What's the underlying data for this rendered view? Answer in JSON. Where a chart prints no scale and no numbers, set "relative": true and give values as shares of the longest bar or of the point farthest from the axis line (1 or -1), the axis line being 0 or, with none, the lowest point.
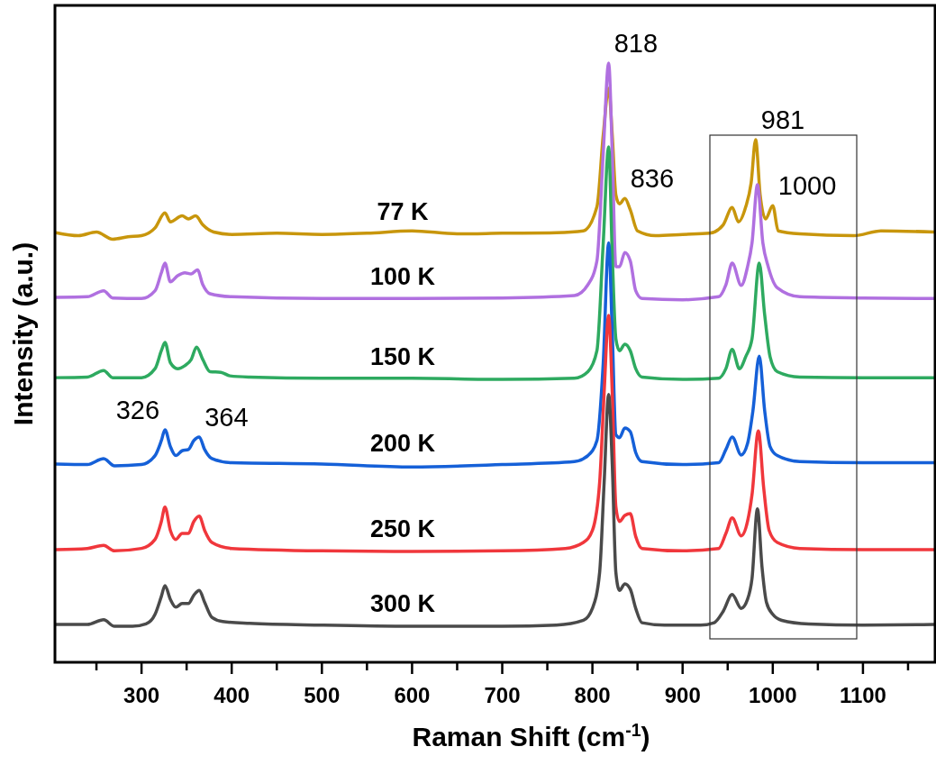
{
  "chart_data": {
    "type": "line",
    "relative": true,
    "xlabel": "Raman Shift (cm$^{-1}$)",
    "ylabel": "Intensity (a.u.)",
    "xlim": [
      204,
      1180
    ],
    "xticks": [
      {
        "value": 250,
        "label": null
      },
      300,
      {
        "value": 350,
        "label": null
      },
      400,
      {
        "value": 450,
        "label": null
      },
      500,
      {
        "value": 550,
        "label": null
      },
      600,
      {
        "value": 650,
        "label": null
      },
      700,
      {
        "value": 750,
        "label": null
      },
      800,
      {
        "value": 850,
        "label": null
      },
      900,
      {
        "value": 950,
        "label": null
      },
      1000,
      {
        "value": 1050,
        "label": null
      },
      1100,
      {
        "value": 1150,
        "label": null
      }
    ],
    "tick_labels": "x",
    "grid": false,
    "marker": "none",
    "line_style": "solid",
    "annotations": [
      {
        "text": "818",
        "x": 818,
        "y": 1.0
      },
      {
        "text": "836",
        "x": 836,
        "y": 0.774
      },
      {
        "text": "981",
        "x": 981,
        "y": 0.872
      },
      {
        "text": "1000",
        "x": 1000,
        "y": 0.762
      },
      {
        "text": "326",
        "x": 326,
        "y": 0.388
      },
      {
        "text": "364",
        "x": 364,
        "y": 0.376
      }
    ],
    "series": [
      {
        "name": "77 K",
        "color": "#c8960c",
        "x": [
          205,
          230,
          250,
          268,
          285,
          300,
          315,
          326,
          332,
          345,
          352,
          360,
          368,
          380,
          400,
          450,
          500,
          550,
          600,
          650,
          700,
          760,
          790,
          805,
          812,
          818,
          822,
          826,
          830,
          836,
          842,
          850,
          870,
          900,
          930,
          945,
          955,
          962,
          970,
          976,
          981,
          986,
          992,
          1000,
          1006,
          1030,
          1090,
          1120,
          1179
        ],
        "values": [
          0.717,
          0.712,
          0.718,
          0.706,
          0.71,
          0.712,
          0.725,
          0.75,
          0.735,
          0.745,
          0.74,
          0.745,
          0.73,
          0.718,
          0.714,
          0.716,
          0.714,
          0.716,
          0.72,
          0.715,
          0.716,
          0.717,
          0.72,
          0.76,
          0.88,
          0.958,
          0.88,
          0.78,
          0.765,
          0.774,
          0.755,
          0.72,
          0.712,
          0.714,
          0.716,
          0.73,
          0.759,
          0.735,
          0.76,
          0.8,
          0.872,
          0.78,
          0.74,
          0.762,
          0.72,
          0.715,
          0.712,
          0.72,
          0.718
        ]
      },
      {
        "name": "100 K",
        "color": "#b070e0",
        "x": [
          205,
          240,
          258,
          268,
          300,
          315,
          322,
          326,
          332,
          340,
          348,
          355,
          362,
          368,
          376,
          400,
          500,
          600,
          700,
          780,
          795,
          805,
          812,
          818,
          822,
          826,
          830,
          836,
          842,
          848,
          855,
          900,
          940,
          948,
          955,
          965,
          972,
          977,
          983,
          989,
          995,
          1005,
          1030,
          1100,
          1179
        ],
        "values": [
          0.609,
          0.61,
          0.62,
          0.608,
          0.607,
          0.62,
          0.65,
          0.666,
          0.635,
          0.645,
          0.65,
          0.648,
          0.655,
          0.63,
          0.615,
          0.61,
          0.607,
          0.607,
          0.608,
          0.612,
          0.63,
          0.67,
          0.85,
          1.0,
          0.85,
          0.66,
          0.66,
          0.684,
          0.67,
          0.62,
          0.607,
          0.605,
          0.61,
          0.63,
          0.666,
          0.629,
          0.66,
          0.7,
          0.797,
          0.7,
          0.66,
          0.625,
          0.61,
          0.608,
          0.607
        ]
      },
      {
        "name": "150 K",
        "color": "#2eaa60",
        "x": [
          205,
          240,
          258,
          268,
          300,
          315,
          322,
          326,
          332,
          340,
          348,
          355,
          361,
          368,
          376,
          388,
          398,
          420,
          500,
          600,
          700,
          780,
          795,
          805,
          812,
          818,
          822,
          826,
          830,
          836,
          842,
          848,
          855,
          900,
          940,
          948,
          955,
          963,
          970,
          977,
          985,
          991,
          997,
          1005,
          1030,
          1100,
          1179
        ],
        "values": [
          0.475,
          0.476,
          0.487,
          0.475,
          0.475,
          0.49,
          0.52,
          0.534,
          0.5,
          0.49,
          0.495,
          0.505,
          0.526,
          0.505,
          0.485,
          0.484,
          0.478,
          0.476,
          0.474,
          0.474,
          0.472,
          0.474,
          0.485,
          0.52,
          0.7,
          0.86,
          0.68,
          0.54,
          0.52,
          0.531,
          0.52,
          0.49,
          0.476,
          0.472,
          0.474,
          0.49,
          0.522,
          0.49,
          0.51,
          0.54,
          0.666,
          0.58,
          0.51,
          0.485,
          0.476,
          0.475,
          0.475
        ]
      },
      {
        "name": "200 K",
        "color": "#1560d8",
        "x": [
          205,
          240,
          258,
          270,
          300,
          315,
          322,
          326,
          332,
          338,
          345,
          352,
          358,
          364,
          370,
          378,
          400,
          500,
          600,
          700,
          780,
          795,
          805,
          812,
          818,
          822,
          826,
          830,
          836,
          842,
          848,
          855,
          900,
          940,
          948,
          955,
          965,
          972,
          978,
          985,
          991,
          997,
          1005,
          1030,
          1100,
          1179
        ],
        "values": [
          0.331,
          0.33,
          0.34,
          0.328,
          0.33,
          0.345,
          0.37,
          0.388,
          0.36,
          0.345,
          0.353,
          0.355,
          0.37,
          0.376,
          0.355,
          0.34,
          0.333,
          0.331,
          0.326,
          0.33,
          0.335,
          0.345,
          0.37,
          0.5,
          0.7,
          0.55,
          0.38,
          0.375,
          0.391,
          0.385,
          0.35,
          0.335,
          0.33,
          0.333,
          0.355,
          0.376,
          0.346,
          0.365,
          0.42,
          0.511,
          0.42,
          0.36,
          0.345,
          0.335,
          0.333,
          0.333
        ]
      },
      {
        "name": "250 K",
        "color": "#f0373c",
        "x": [
          205,
          240,
          258,
          270,
          300,
          315,
          322,
          326,
          332,
          338,
          345,
          352,
          358,
          364,
          370,
          378,
          400,
          500,
          600,
          700,
          770,
          790,
          800,
          808,
          813,
          818,
          822,
          826,
          830,
          836,
          842,
          848,
          855,
          900,
          940,
          948,
          955,
          965,
          972,
          977,
          984,
          990,
          996,
          1005,
          1030,
          1100,
          1179
        ],
        "values": [
          0.188,
          0.19,
          0.195,
          0.186,
          0.19,
          0.205,
          0.235,
          0.259,
          0.22,
          0.205,
          0.215,
          0.215,
          0.235,
          0.244,
          0.22,
          0.2,
          0.19,
          0.186,
          0.185,
          0.186,
          0.19,
          0.2,
          0.22,
          0.3,
          0.45,
          0.579,
          0.45,
          0.26,
          0.235,
          0.245,
          0.248,
          0.21,
          0.19,
          0.186,
          0.19,
          0.215,
          0.241,
          0.211,
          0.235,
          0.28,
          0.386,
          0.29,
          0.22,
          0.2,
          0.19,
          0.188,
          0.188
        ]
      },
      {
        "name": "300 K",
        "color": "#4a4a4a",
        "x": [
          205,
          240,
          258,
          270,
          290,
          305,
          315,
          322,
          326,
          332,
          338,
          345,
          352,
          358,
          364,
          370,
          378,
          390,
          420,
          500,
          600,
          700,
          760,
          790,
          800,
          808,
          813,
          818,
          822,
          826,
          830,
          836,
          842,
          848,
          855,
          880,
          920,
          935,
          945,
          955,
          965,
          972,
          977,
          983,
          988,
          993,
          1000,
          1010,
          1040,
          1100,
          1179
        ],
        "values": [
          0.063,
          0.063,
          0.071,
          0.06,
          0.06,
          0.064,
          0.08,
          0.11,
          0.128,
          0.105,
          0.092,
          0.098,
          0.098,
          0.112,
          0.12,
          0.1,
          0.075,
          0.068,
          0.065,
          0.062,
          0.06,
          0.06,
          0.062,
          0.07,
          0.09,
          0.15,
          0.3,
          0.447,
          0.33,
          0.15,
          0.12,
          0.131,
          0.122,
          0.09,
          0.066,
          0.062,
          0.062,
          0.066,
          0.085,
          0.113,
          0.09,
          0.105,
          0.14,
          0.256,
          0.16,
          0.1,
          0.08,
          0.07,
          0.064,
          0.062,
          0.063
        ]
      }
    ]
  }
}
